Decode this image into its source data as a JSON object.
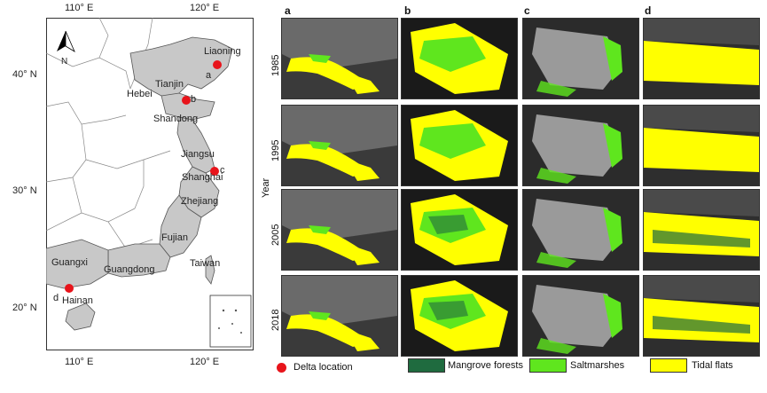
{
  "map": {
    "lon_ticks_top": [
      "110° E",
      "120° E"
    ],
    "lon_ticks_bottom": [
      "110° E",
      "120° E"
    ],
    "lat_ticks": [
      "40° N",
      "30° N",
      "20° N"
    ],
    "north_label": "N",
    "provinces": [
      "Liaoning",
      "Tianjin",
      "Hebei",
      "Shandong",
      "Jiangsu",
      "Shanghai",
      "Zhejiang",
      "Fujian",
      "Taiwan",
      "Guangxi",
      "Guangdong",
      "Hainan"
    ],
    "sites": [
      "a",
      "b",
      "c",
      "d"
    ],
    "colors": {
      "study_area": "#c8c8c8",
      "other": "#ffffff",
      "site": "#e8141b"
    }
  },
  "grid": {
    "columns": [
      "a",
      "b",
      "c",
      "d"
    ],
    "years": [
      "1985",
      "1995",
      "2005",
      "2018"
    ],
    "axis_title": "Year"
  },
  "legend": {
    "delta_location": "Delta location",
    "mangrove": "Mangrove forests",
    "saltmarsh": "Saltmarshes",
    "tidal_flats": "Tidal flats",
    "colors": {
      "mangrove": "#1f6b3f",
      "saltmarsh": "#5fe61e",
      "tidal_flats": "#ffff00"
    }
  }
}
